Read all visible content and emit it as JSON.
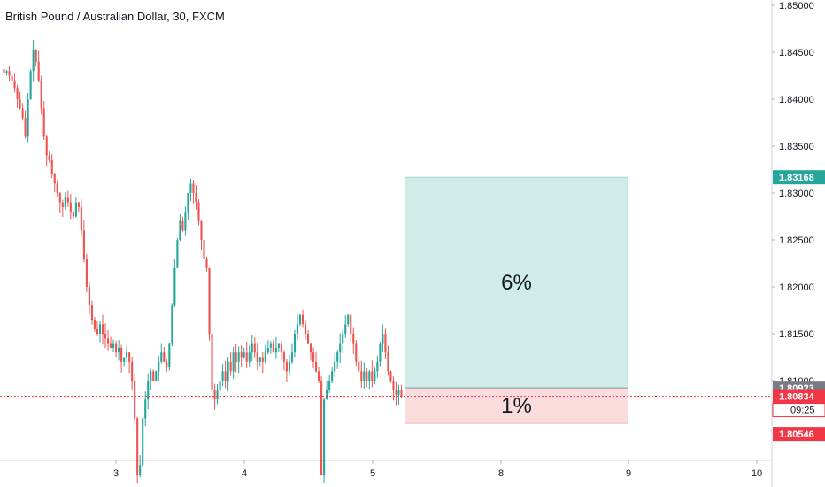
{
  "chart_data": {
    "type": "candlestick",
    "title": "British Pound / Australian Dollar, 30, FXCM",
    "ylim": [
      1.8,
      1.85
    ],
    "y_ticks": [
      "1.85000",
      "1.84500",
      "1.84000",
      "1.83500",
      "1.83000",
      "1.82500",
      "1.82000",
      "1.81500",
      "1.81000"
    ],
    "x_ticks": [
      "3",
      "4",
      "5",
      "8",
      "9",
      "10"
    ],
    "price_labels": [
      {
        "value": 1.83168,
        "text": "1.83168",
        "color": "#26a69a"
      },
      {
        "value": 1.80923,
        "text": "1.80923",
        "color": "#787b86"
      },
      {
        "value": 1.80834,
        "text": "1.80834",
        "color": "#f23645"
      },
      {
        "value": 1.80546,
        "text": "1.80546",
        "color": "#f23645"
      }
    ],
    "countdown": "09:25",
    "current_price": 1.80834,
    "position": {
      "entry": 1.80923,
      "target": 1.83168,
      "stop": 1.80546,
      "target_label": "6%",
      "stop_label": "1%",
      "profit_color": "#cbeae5",
      "loss_color": "#fbd8d9"
    },
    "colors": {
      "up": "#26a69a",
      "down": "#ef5350"
    },
    "price_path": [
      1.8432,
      1.8428,
      1.843,
      1.8425,
      1.842,
      1.8412,
      1.84,
      1.839,
      1.838,
      1.836,
      1.84,
      1.843,
      1.8452,
      1.844,
      1.842,
      1.839,
      1.836,
      1.834,
      1.8335,
      1.832,
      1.831,
      1.83,
      1.829,
      1.8285,
      1.8295,
      1.829,
      1.828,
      1.8275,
      1.829,
      1.8285,
      1.826,
      1.823,
      1.82,
      1.818,
      1.8165,
      1.8155,
      1.815,
      1.816,
      1.815,
      1.8145,
      1.814,
      1.8135,
      1.814,
      1.813,
      1.8135,
      1.812,
      1.8125,
      1.813,
      1.812,
      1.81,
      1.806,
      1.8,
      1.801,
      1.806,
      1.808,
      1.81,
      1.811,
      1.81,
      1.811,
      1.812,
      1.813,
      1.812,
      1.8115,
      1.814,
      1.818,
      1.822,
      1.825,
      1.827,
      1.826,
      1.828,
      1.83,
      1.831,
      1.83,
      1.829,
      1.827,
      1.825,
      1.823,
      1.822,
      1.815,
      1.809,
      1.808,
      1.809,
      1.81,
      1.811,
      1.81,
      1.812,
      1.811,
      1.813,
      1.812,
      1.813,
      1.8125,
      1.813,
      1.812,
      1.813,
      1.814,
      1.813,
      1.812,
      1.8125,
      1.812,
      1.813,
      1.8135,
      1.814,
      1.813,
      1.8135,
      1.814,
      1.813,
      1.812,
      1.811,
      1.812,
      1.813,
      1.815,
      1.816,
      1.817,
      1.816,
      1.815,
      1.814,
      1.813,
      1.812,
      1.811,
      1.81,
      1.8,
      1.808,
      1.809,
      1.81,
      1.811,
      1.812,
      1.813,
      1.814,
      1.815,
      1.816,
      1.817,
      1.815,
      1.814,
      1.812,
      1.811,
      1.81,
      1.811,
      1.81,
      1.811,
      1.81,
      1.811,
      1.812,
      1.814,
      1.815,
      1.813,
      1.811,
      1.81,
      1.809,
      1.8085,
      1.809,
      1.8083
    ]
  }
}
